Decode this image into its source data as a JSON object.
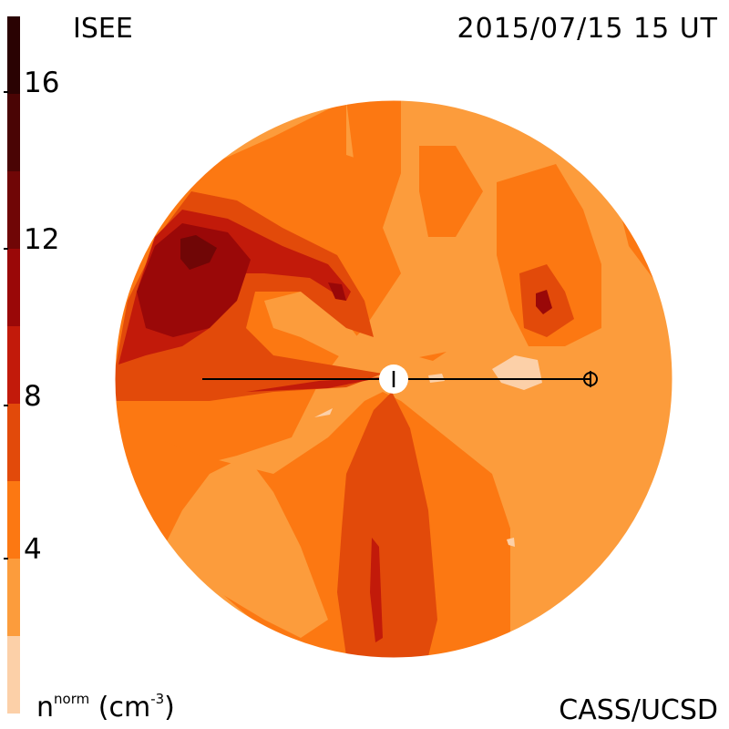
{
  "header": {
    "observatory": "ISEE",
    "datetime": "2015/07/15 15 UT"
  },
  "footer": {
    "units_base": "n",
    "units_sup": "norm",
    "units_rest": "(cm",
    "units_exp": "-3",
    "units_close": ")",
    "credit": "CASS/UCSD"
  },
  "colorbar": {
    "ticks": [
      "16",
      "12",
      "8",
      "4"
    ],
    "tick_values": [
      16,
      12,
      8,
      4
    ],
    "range": [
      0,
      18
    ],
    "colors": [
      "#fcd0a8",
      "#fc9c3c",
      "#fc7812",
      "#e24a0a",
      "#c21a0a",
      "#9a0808",
      "#700606",
      "#4a0404",
      "#2a0202"
    ]
  },
  "map": {
    "description_colors": {
      "level_2_4": "#fc9c3c",
      "level_4_6": "#fc7812",
      "level_6_8": "#e24a0a",
      "level_8_10": "#c21a0a",
      "level_10_12": "#9a0808",
      "level_12_14": "#700606",
      "level_lt_2": "#fcd0a8"
    }
  }
}
